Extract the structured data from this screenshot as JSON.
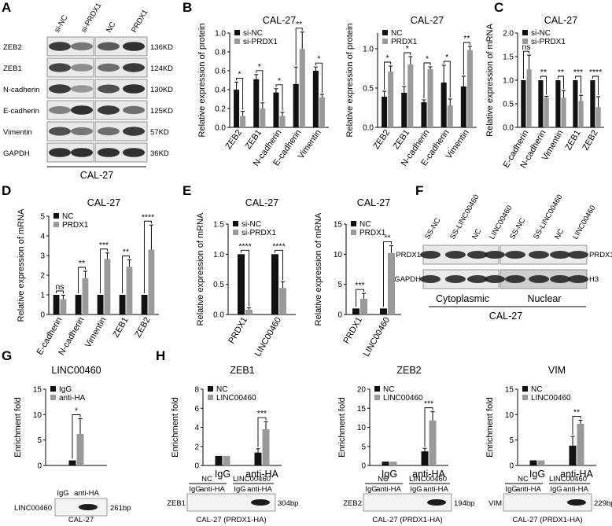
{
  "colors": {
    "dark": "#111111",
    "light": "#9a9a9a",
    "blot_bg": "#e9e9e9",
    "band": "#1c1c1c"
  },
  "panelA": {
    "letter": "A",
    "lanes": [
      "si-NC",
      "si-PRDX1",
      "NC",
      "PRDX1"
    ],
    "rows": [
      {
        "label": "ZEB2",
        "size": "136KD",
        "i": [
          0.85,
          0.55,
          0.7,
          0.9
        ]
      },
      {
        "label": "ZEB1",
        "size": "124KD",
        "i": [
          0.8,
          0.45,
          0.6,
          0.85
        ]
      },
      {
        "label": "N-cadherin",
        "size": "130KD",
        "i": [
          0.85,
          0.4,
          0.75,
          0.9
        ]
      },
      {
        "label": "E-cadherin",
        "size": "125KD",
        "i": [
          0.5,
          0.9,
          0.85,
          0.6
        ]
      },
      {
        "label": "Vimentin",
        "size": "57KD",
        "i": [
          0.75,
          0.55,
          0.6,
          0.85
        ]
      },
      {
        "label": "GAPDH",
        "size": "36KD",
        "i": [
          0.9,
          0.9,
          0.9,
          0.9
        ]
      }
    ],
    "cell": "CAL-27"
  },
  "panelB": {
    "letter": "B"
  },
  "panelC": {
    "letter": "C"
  },
  "panelD": {
    "letter": "D"
  },
  "panelE": {
    "letter": "E"
  },
  "panelF": {
    "letter": "F",
    "lanes": [
      "SS-NC",
      "SS-LINC00460",
      "NC",
      "LINC00460",
      "SS-NC",
      "SS-LINC00460",
      "NC",
      "LINC00460"
    ],
    "row1_left": "PRDX1",
    "row1_right": "PRDX1",
    "row2_left": "GAPDH",
    "row2_right": "H3",
    "frac1": "Cytoplasmic",
    "frac2": "Nuclear",
    "cell": "CAL-27"
  },
  "panelG": {
    "letter": "G",
    "blot_lanes": [
      "IgG",
      "anti-HA"
    ],
    "blot_label": "LINC00460",
    "size": "261bp",
    "cell1": "CAL-27",
    "cell2": "(PRDX1-HA)"
  },
  "panelH": {
    "letter": "H",
    "blots": [
      {
        "label": "ZEB1",
        "size": "304bp"
      },
      {
        "label": "ZEB2",
        "size": "194bp"
      },
      {
        "label": "VIM",
        "size": "229bp"
      }
    ],
    "group1": "NC",
    "group2": "LINC00460",
    "lane1": "IgG",
    "lane2": "anti-HA",
    "cell": "CAL-27 (PRDX1-HA)"
  },
  "chart_data": [
    {
      "id": "B1",
      "type": "bar",
      "title": "CAL-27",
      "ylabel": "Relative expression of protein",
      "categories": [
        "ZEB2",
        "ZEB1",
        "N-cadherin",
        "E-cadherin",
        "Vimentin"
      ],
      "ylim": [
        0,
        1.0
      ],
      "yticks": [
        "0.0",
        "0.2",
        "0.4",
        "0.6",
        "0.8",
        "1.0"
      ],
      "series": [
        {
          "name": "si-NC",
          "values": [
            0.4,
            0.51,
            0.37,
            0.46,
            0.6
          ],
          "err": [
            0.08,
            0.05,
            0.04,
            0.18,
            0.04
          ]
        },
        {
          "name": "si-PRDX1",
          "values": [
            0.12,
            0.2,
            0.12,
            0.83,
            0.32
          ],
          "err": [
            0.05,
            0.06,
            0.04,
            0.18,
            0.03
          ]
        }
      ],
      "sig": [
        "*",
        "*",
        "*",
        "**",
        "*"
      ]
    },
    {
      "id": "B2",
      "type": "bar",
      "title": "CAL-27",
      "ylabel": "Relative expression of protein",
      "categories": [
        "ZEB2",
        "ZEB1",
        "N-cadherin",
        "E-cadherin",
        "Vimentin"
      ],
      "ylim": [
        0,
        1.2
      ],
      "yticks": [
        "0.0",
        "0.5",
        "1.0"
      ],
      "series": [
        {
          "name": "NC",
          "values": [
            0.39,
            0.44,
            0.32,
            0.57,
            0.52
          ],
          "err": [
            0.07,
            0.08,
            0.03,
            0.22,
            0.13
          ]
        },
        {
          "name": "PRDX1",
          "values": [
            0.71,
            0.8,
            0.74,
            0.28,
            0.98
          ],
          "err": [
            0.07,
            0.1,
            0.03,
            0.08,
            0.05
          ]
        }
      ],
      "sig": [
        "*",
        "*",
        "*",
        "*",
        "**"
      ]
    },
    {
      "id": "C",
      "type": "bar",
      "title": "CAL-27",
      "ylabel": "Relative expression of mRNA",
      "categories": [
        "E-cadherin",
        "N-cadherin",
        "Vimentin",
        "ZEB1",
        "ZEB2"
      ],
      "ylim": [
        0,
        2.0
      ],
      "yticks": [
        "0.0",
        "0.5",
        "1.0",
        "1.5",
        "2.0"
      ],
      "series": [
        {
          "name": "si-NC",
          "values": [
            1,
            1,
            1,
            1,
            1
          ],
          "err": [
            0,
            0,
            0,
            0,
            0
          ]
        },
        {
          "name": "si-PRDX1",
          "values": [
            1.23,
            0.63,
            0.63,
            0.56,
            0.43
          ],
          "err": [
            0.3,
            0.03,
            0.15,
            0.12,
            0.22
          ]
        }
      ],
      "sig": [
        "ns",
        "**",
        "**",
        "***",
        "****"
      ]
    },
    {
      "id": "D",
      "type": "bar",
      "title": "CAL-27",
      "ylabel": "Relative expression of mRNA",
      "categories": [
        "E-cadherin",
        "N-cadherin",
        "Vimentin",
        "ZEB1",
        "ZEB2"
      ],
      "ylim": [
        0,
        5
      ],
      "yticks": [
        "0",
        "1",
        "2",
        "3",
        "4",
        "5"
      ],
      "series": [
        {
          "name": "NC",
          "values": [
            1,
            1,
            1,
            1,
            1
          ],
          "err": [
            0,
            0,
            0,
            0,
            0
          ]
        },
        {
          "name": "PRDX1",
          "values": [
            0.78,
            1.85,
            2.83,
            2.43,
            3.3
          ],
          "err": [
            0.2,
            0.35,
            0.3,
            0.35,
            1.25
          ]
        }
      ],
      "sig": [
        "ns",
        "**",
        "***",
        "**",
        "****"
      ]
    },
    {
      "id": "E1",
      "type": "bar",
      "title": "CAL-27",
      "ylabel": "Relative expression of mRNA",
      "categories": [
        "PRDX1",
        "LINC00460"
      ],
      "ylim": [
        0,
        1.5
      ],
      "yticks": [
        "0.0",
        "0.5",
        "1.0",
        "1.5"
      ],
      "series": [
        {
          "name": "si-NC",
          "values": [
            1,
            1
          ],
          "err": [
            0,
            0
          ]
        },
        {
          "name": "si-PRDX1",
          "values": [
            0.08,
            0.44
          ],
          "err": [
            0.03,
            0.1
          ]
        }
      ],
      "sig": [
        "****",
        "****"
      ]
    },
    {
      "id": "E2",
      "type": "bar",
      "title": "CAL-27",
      "ylabel": "Relative expression of mRNA",
      "categories": [
        "PRDX1",
        "LINC00460"
      ],
      "ylim": [
        0,
        15
      ],
      "yticks": [
        "0",
        "5",
        "10",
        "15"
      ],
      "series": [
        {
          "name": "NC",
          "values": [
            1,
            1
          ],
          "err": [
            0,
            0
          ]
        },
        {
          "name": "PRDX1",
          "values": [
            2.6,
            10.2
          ],
          "err": [
            0.9,
            1.2
          ]
        }
      ],
      "sig": [
        "***",
        "**"
      ]
    },
    {
      "id": "G",
      "type": "bar",
      "title": "LINC00460",
      "ylabel": "Enrichment fold",
      "categories": [
        ""
      ],
      "ylim": [
        0,
        15
      ],
      "yticks": [
        "0",
        "5",
        "10",
        "15"
      ],
      "series": [
        {
          "name": "IgG",
          "values": [
            1
          ],
          "err": [
            0
          ]
        },
        {
          "name": "anti-HA",
          "values": [
            6.2
          ],
          "err": [
            3
          ]
        }
      ],
      "sig": [
        "*"
      ]
    },
    {
      "id": "H1",
      "type": "bar",
      "title": "ZEB1",
      "ylabel": "Enrichment fold",
      "categories": [
        "IgG",
        "anti-HA"
      ],
      "ylim": [
        0,
        8
      ],
      "yticks": [
        "0",
        "2",
        "4",
        "6",
        "8"
      ],
      "series": [
        {
          "name": "NC",
          "values": [
            1,
            1.35
          ],
          "err": [
            0,
            0.4
          ]
        },
        {
          "name": "LINC00460",
          "values": [
            1,
            3.8
          ],
          "err": [
            0,
            0.8
          ]
        }
      ],
      "sig": [
        "",
        "***"
      ]
    },
    {
      "id": "H2",
      "type": "bar",
      "title": "ZEB2",
      "ylabel": "Enrichment fold",
      "categories": [
        "IgG",
        "anti-HA"
      ],
      "ylim": [
        0,
        20
      ],
      "yticks": [
        "0",
        "5",
        "10",
        "15",
        "20"
      ],
      "series": [
        {
          "name": "NC",
          "values": [
            1,
            3.7
          ],
          "err": [
            0,
            0.8
          ]
        },
        {
          "name": "LINC00460",
          "values": [
            1,
            11.8
          ],
          "err": [
            0,
            2.3
          ]
        }
      ],
      "sig": [
        "",
        "***"
      ]
    },
    {
      "id": "H3",
      "type": "bar",
      "title": "VIM",
      "ylabel": "Enrichment fold",
      "categories": [
        "IgG",
        "anti-HA"
      ],
      "ylim": [
        0,
        15
      ],
      "yticks": [
        "0",
        "5",
        "10",
        "15"
      ],
      "series": [
        {
          "name": "NC",
          "values": [
            1,
            3.9
          ],
          "err": [
            0,
            1.8
          ]
        },
        {
          "name": "LINC00460",
          "values": [
            1,
            8.2
          ],
          "err": [
            0,
            0.7
          ]
        }
      ],
      "sig": [
        "",
        "**"
      ]
    }
  ]
}
